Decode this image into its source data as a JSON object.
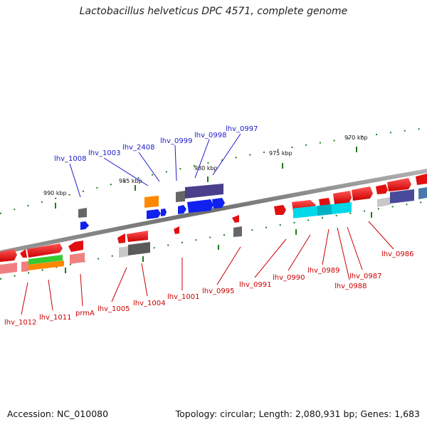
{
  "header": {
    "title": "Lactobacillus helveticus DPC 4571, complete genome"
  },
  "footer": {
    "accession": "Accession: NC_010080",
    "topology": "Topology: circular; Length: 2,080,931 bp; Genes: 1,683"
  },
  "scale_labels": [
    "990 kbp",
    "985 kbp",
    "980 kbp",
    "975 kbp",
    "970 kbp"
  ],
  "top_genes": [
    "lhv_1008",
    "lhv_1003",
    "lhv_2408",
    "lhv_0999",
    "lhv_0998",
    "lhv_0997"
  ],
  "bottom_genes": [
    "lhv_1012",
    "lhv_1011",
    "prmA",
    "lhv_1005",
    "lhv_1004",
    "lhv_1001",
    "lhv_0995",
    "lhv_0991",
    "lhv_0990",
    "lhv_0989",
    "lhv_0988",
    "lhv_0987",
    "lhv_0986"
  ],
  "colors": {
    "top_label": "#1a1acc",
    "bottom_label": "#cc0000",
    "backbone": "#888888",
    "tick": "#1f7a1f"
  }
}
